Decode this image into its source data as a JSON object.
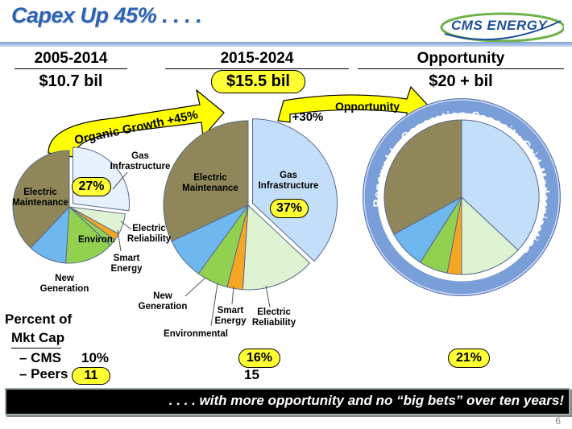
{
  "slide": {
    "title": "Capex Up 45% . . . .",
    "logo_text": "CMS ENERGY",
    "footer_text": ". . . . with more opportunity and no “big bets” over ten years!",
    "page_number": "6"
  },
  "columns": [
    {
      "period": "2005-2014",
      "total": "$10.7 bil"
    },
    {
      "period": "2015-2024",
      "total": "$15.5 bil"
    },
    {
      "period": "Opportunity",
      "total": "$20 + bil"
    }
  ],
  "arrows": {
    "organic_growth": "Organic Growth +45%",
    "opportunity_pct": "+30%",
    "opportunity_label": "Opportunity"
  },
  "ring_labels": {
    "top": "Generation Capacity",
    "right": "Grid Modernization",
    "bottom": "Gas Infrastructure",
    "left": "Renewables"
  },
  "market_cap": {
    "label_line1": "Percent of",
    "label_line2": "Mkt Cap",
    "cms_label": "– CMS",
    "peers_label": "– Peers",
    "cms_2005": "10%",
    "peers_2005": "11",
    "cms_2015": "16%",
    "peers_2015": "15",
    "cms_opportunity": "21%"
  },
  "chart_data": [
    {
      "type": "pie",
      "title": "2005-2014",
      "slices": [
        {
          "label": "Gas Infrastructure",
          "value": 27,
          "value_label": "27%",
          "color": "#e6f1fb"
        },
        {
          "label": "Electric Reliability",
          "value": 6,
          "color": "#def3d2"
        },
        {
          "label": "",
          "value": 2,
          "color": "#f5a623"
        },
        {
          "label": "Smart Energy",
          "value": 2,
          "color": "#8fd455"
        },
        {
          "label": "Environ.",
          "value": 14,
          "color": "#92d050"
        },
        {
          "label": "New Generation",
          "value": 11,
          "color": "#6fb7ef"
        },
        {
          "label": "Electric Maintenance",
          "value": 38,
          "color": "#8f8659"
        }
      ]
    },
    {
      "type": "pie",
      "title": "2015-2024",
      "slices": [
        {
          "label": "Gas Infrastructure",
          "value": 37,
          "value_label": "37%",
          "color": "#c3def9"
        },
        {
          "label": "Electric Reliability",
          "value": 14,
          "color": "#def3d2"
        },
        {
          "label": "Smart Energy",
          "value": 3,
          "color": "#f5a623"
        },
        {
          "label": "Environmental",
          "value": 6,
          "color": "#92d050"
        },
        {
          "label": "New Generation",
          "value": 8,
          "color": "#6fb7ef"
        },
        {
          "label": "Electric Maintenance",
          "value": 32,
          "color": "#8f8659"
        }
      ]
    },
    {
      "type": "pie",
      "title": "Opportunity",
      "slices": [
        {
          "label": "",
          "value": 37,
          "color": "#c3def9"
        },
        {
          "label": "",
          "value": 13,
          "color": "#def3d2"
        },
        {
          "label": "",
          "value": 3,
          "color": "#f5a623"
        },
        {
          "label": "",
          "value": 6,
          "color": "#92d050"
        },
        {
          "label": "",
          "value": 8,
          "color": "#6fb7ef"
        },
        {
          "label": "",
          "value": 33,
          "color": "#8f8659"
        }
      ]
    }
  ]
}
